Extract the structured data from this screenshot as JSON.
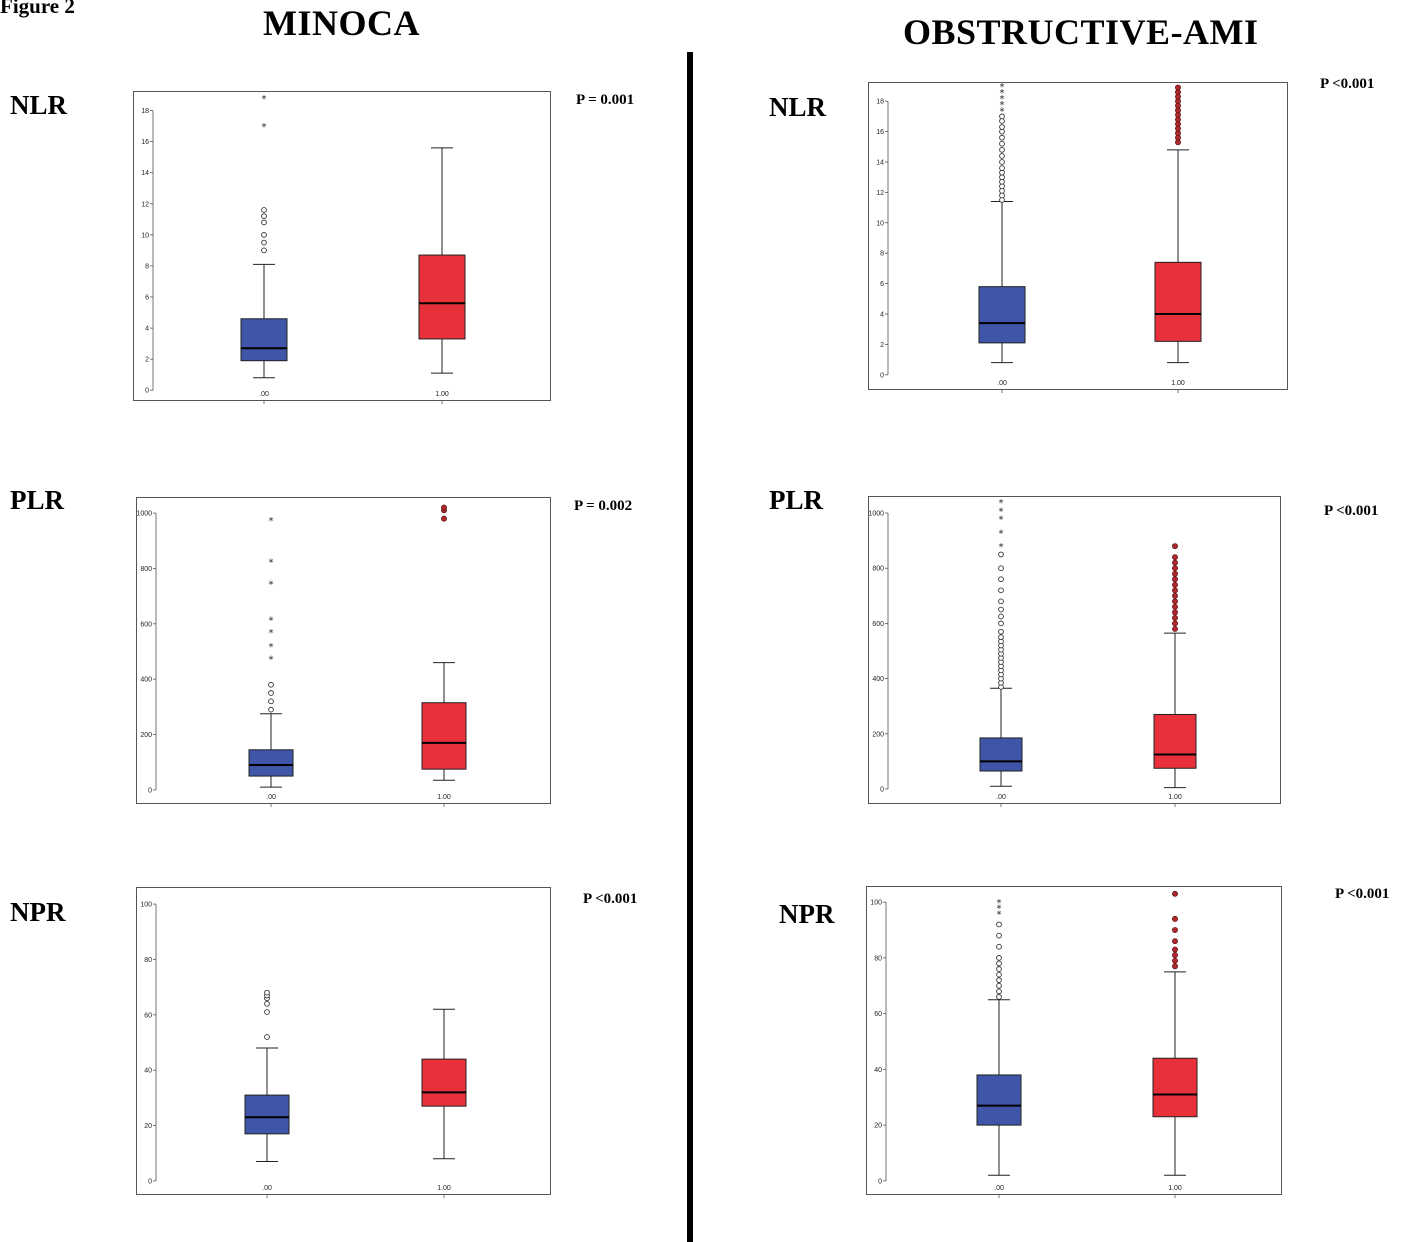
{
  "figure_label": "Figure 2",
  "columns": [
    {
      "title": "MINOCA"
    },
    {
      "title": "OBSTRUCTIVE-AMI"
    }
  ],
  "colors": {
    "group0": "#3e55a8",
    "group1": "#e8303a",
    "outlier1": "#b0282c"
  },
  "chart_data": [
    {
      "type": "box",
      "panel": "MINOCA",
      "metric": "NLR",
      "p_value": "P = 0.001",
      "categories": [
        ".00",
        "1.00"
      ],
      "yticks": [
        0,
        2,
        4,
        6,
        8,
        10,
        12,
        14,
        16,
        18
      ],
      "ylim": [
        -0.5,
        19
      ],
      "boxes": [
        {
          "min": 0.8,
          "q1": 1.9,
          "median": 2.7,
          "q3": 4.6,
          "max": 8.1
        },
        {
          "min": 1.1,
          "q1": 3.3,
          "median": 5.6,
          "q3": 8.7,
          "max": 15.6
        }
      ],
      "outliers": [
        [
          9.0,
          9.5,
          10.0,
          10.8,
          11.2,
          11.6
        ],
        []
      ],
      "extremes": [
        [
          17.0,
          18.8
        ],
        []
      ]
    },
    {
      "type": "box",
      "panel": "OBSTRUCTIVE-AMI",
      "metric": "NLR",
      "p_value": "P <0.001",
      "categories": [
        ".00",
        "1.00"
      ],
      "yticks": [
        0,
        2,
        4,
        6,
        8,
        10,
        12,
        14,
        16,
        18
      ],
      "ylim": [
        -1,
        19
      ],
      "boxes": [
        {
          "min": 0.8,
          "q1": 2.1,
          "median": 3.4,
          "q3": 5.8,
          "max": 11.4
        },
        {
          "min": 0.8,
          "q1": 2.2,
          "median": 4.0,
          "q3": 7.4,
          "max": 14.8
        }
      ],
      "outliers": [
        [
          11.5,
          11.8,
          12.1,
          12.4,
          12.7,
          13.0,
          13.3,
          13.6,
          14.0,
          14.4,
          14.8,
          15.2,
          15.6,
          16.0,
          16.3,
          16.7,
          17.0
        ],
        [
          15.3,
          15.6,
          15.9,
          16.2,
          16.5,
          16.8,
          17.1,
          17.4,
          17.7,
          18.0,
          18.3,
          18.6,
          18.9
        ]
      ],
      "extremes": [
        [
          17.4,
          17.8,
          18.2,
          18.6,
          19.0
        ],
        []
      ]
    },
    {
      "type": "box",
      "panel": "MINOCA",
      "metric": "PLR",
      "p_value": "P = 0.002",
      "categories": [
        ".00",
        "1.00"
      ],
      "yticks": [
        0,
        200,
        400,
        600,
        800,
        1000
      ],
      "ylim": [
        -40,
        1040
      ],
      "boxes": [
        {
          "min": 10,
          "q1": 50,
          "median": 90,
          "q3": 145,
          "max": 275
        },
        {
          "min": 35,
          "q1": 75,
          "median": 170,
          "q3": 315,
          "max": 460
        }
      ],
      "outliers": [
        [
          290,
          320,
          350,
          380
        ],
        [
          980,
          1010,
          1020
        ]
      ],
      "extremes": [
        [
          475,
          520,
          570,
          615,
          745,
          825,
          975
        ],
        []
      ]
    },
    {
      "type": "box",
      "panel": "OBSTRUCTIVE-AMI",
      "metric": "PLR",
      "p_value": "P <0.001",
      "categories": [
        ".00",
        "1.00"
      ],
      "yticks": [
        0,
        200,
        400,
        600,
        800,
        1000
      ],
      "ylim": [
        -40,
        1040
      ],
      "boxes": [
        {
          "min": 10,
          "q1": 65,
          "median": 100,
          "q3": 185,
          "max": 365
        },
        {
          "min": 5,
          "q1": 75,
          "median": 125,
          "q3": 270,
          "max": 565
        }
      ],
      "outliers": [
        [
          370,
          385,
          400,
          415,
          430,
          445,
          460,
          475,
          490,
          505,
          520,
          535,
          550,
          570,
          600,
          625,
          650,
          680,
          720,
          760,
          800,
          850
        ],
        [
          580,
          600,
          620,
          640,
          660,
          680,
          700,
          720,
          740,
          760,
          780,
          800,
          820,
          840,
          880
        ]
      ],
      "extremes": [
        [
          880,
          930,
          980,
          1010,
          1040
        ],
        []
      ]
    },
    {
      "type": "box",
      "panel": "MINOCA",
      "metric": "NPR",
      "p_value": "P <0.001",
      "categories": [
        ".00",
        "1.00"
      ],
      "yticks": [
        0,
        20,
        40,
        60,
        80,
        100
      ],
      "ylim": [
        -4,
        104
      ],
      "boxes": [
        {
          "min": 7,
          "q1": 17,
          "median": 23,
          "q3": 31,
          "max": 48
        },
        {
          "min": 8,
          "q1": 27,
          "median": 32,
          "q3": 44,
          "max": 62
        }
      ],
      "outliers": [
        [
          52,
          61,
          64,
          66,
          67,
          68
        ],
        []
      ],
      "extremes": [
        [],
        []
      ]
    },
    {
      "type": "box",
      "panel": "OBSTRUCTIVE-AMI",
      "metric": "NPR",
      "p_value": "P <0.001",
      "categories": [
        ".00",
        "1.00"
      ],
      "yticks": [
        0,
        20,
        40,
        60,
        80,
        100
      ],
      "ylim": [
        -4,
        104
      ],
      "boxes": [
        {
          "min": 2,
          "q1": 20,
          "median": 27,
          "q3": 38,
          "max": 65
        },
        {
          "min": 2,
          "q1": 23,
          "median": 31,
          "q3": 44,
          "max": 75
        }
      ],
      "outliers": [
        [
          66,
          68,
          70,
          72,
          74,
          76,
          78,
          80,
          84,
          88,
          92
        ],
        [
          77,
          79,
          81,
          83,
          86,
          90,
          94,
          103
        ]
      ],
      "extremes": [
        [
          96,
          98,
          100
        ],
        []
      ]
    }
  ]
}
